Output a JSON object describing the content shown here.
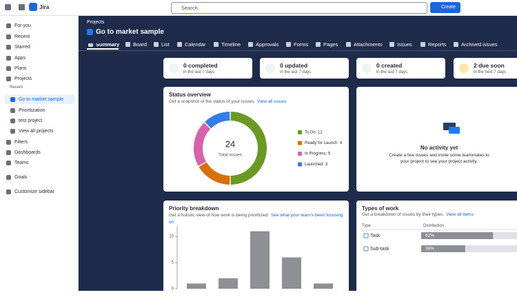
{
  "topbar": {
    "product": "Jira",
    "search_placeholder": "Search",
    "create_button": "Create"
  },
  "sidebar": {
    "items": [
      "For you",
      "Recent",
      "Starred",
      "Apps",
      "Plans",
      "Projects"
    ],
    "recent_heading": "Recent",
    "recent_projects": [
      "Go to market sample",
      "Prioritization",
      "test project"
    ],
    "view_all": "View all projects",
    "more_items": [
      "Filters",
      "Dashboards",
      "Teams"
    ],
    "goals": "Goals",
    "customize": "Customize sidebar"
  },
  "header": {
    "breadcrumb": "Projects",
    "title": "Go to market sample",
    "tabs": [
      "Summary",
      "Board",
      "List",
      "Calendar",
      "Timeline",
      "Approvals",
      "Forms",
      "Pages",
      "Attachments",
      "Issues",
      "Reports",
      "Archived issues"
    ]
  },
  "stats": [
    {
      "title": "0 completed",
      "subtitle": "in the last 7 days"
    },
    {
      "title": "0 updated",
      "subtitle": "in the last 7 days"
    },
    {
      "title": "0 created",
      "subtitle": "in the last 7 days"
    },
    {
      "title": "2 due soon",
      "subtitle": "in the next 7 days"
    }
  ],
  "status_overview": {
    "title": "Status overview",
    "subtitle": "Get a snapshot of the status of your issues.",
    "link": "View all issues",
    "total": 24,
    "total_label": "Total issues",
    "labels": [
      "To Do: 12",
      "Ready for Launch: 4",
      "In Progress: 5",
      "Launched: 3"
    ],
    "values": [
      12,
      4,
      5,
      3
    ],
    "colors": [
      "#6a9a23",
      "#d97008",
      "#da62ac",
      "#357de8"
    ]
  },
  "activity": {
    "title": "No activity yet",
    "message": "Create a few issues and invite some teammates to your project to see your project activity."
  },
  "priority_breakdown": {
    "title": "Priority breakdown",
    "subtitle": "Get a holistic view of how work is being prioritized.",
    "link": "See what your team's been focusing on",
    "values": [
      1,
      2,
      11,
      6,
      1
    ],
    "ylim": [
      0,
      12
    ],
    "yticks": [
      0,
      5,
      10
    ],
    "color": "#8f9095"
  },
  "types_of_work": {
    "title": "Types of work",
    "subtitle": "Get a breakdown of issues by their types.",
    "link": "View all items",
    "column_headers": [
      "Type",
      "Distribution"
    ],
    "types": [
      "Task",
      "Sub-task"
    ],
    "values": [
      62,
      38
    ],
    "value_labels": [
      "62%",
      "38%"
    ]
  }
}
